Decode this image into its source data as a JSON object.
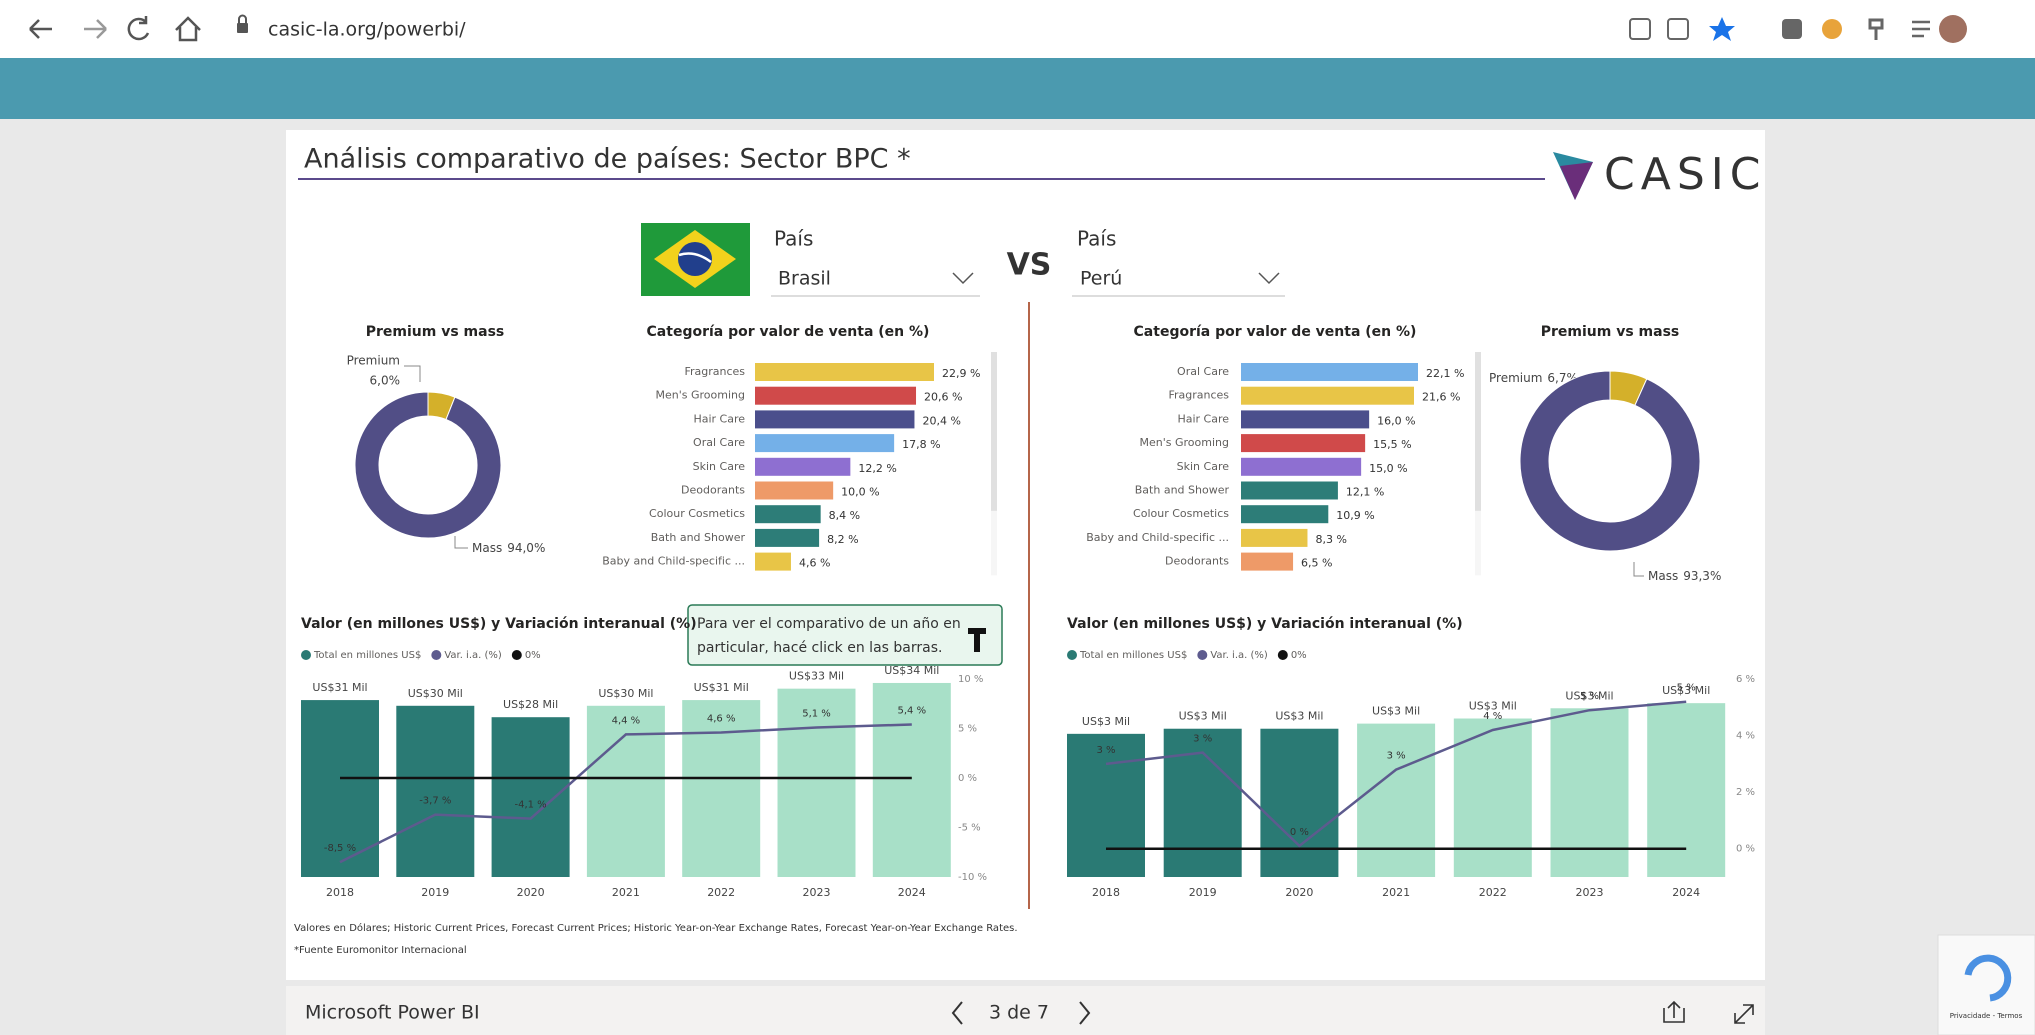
{
  "browser": {
    "url": "casic-la.org/powerbi/"
  },
  "report": {
    "title": "Análisis comparativo de países: Sector BPC *",
    "logo": "CASIC",
    "vs": "VS",
    "left_filter": {
      "label": "País",
      "value": "Brasil"
    },
    "right_filter": {
      "label": "País",
      "value": "Perú"
    },
    "tooltip": [
      "Para ver el comparativo de un año en",
      "particular, hacé click en las barras."
    ],
    "footnotes": [
      "Valores en Dólares; Historic Current Prices, Forecast Current Prices; Historic Year-on-Year Exchange Rates, Forecast Year-on-Year Exchange Rates.",
      "*Fuente Euromonitor Internacional"
    ]
  },
  "viewer": {
    "app": "Microsoft Power BI",
    "page": "3 de 7"
  },
  "recaptcha": {
    "links": "Privacidade - Termos"
  },
  "chart_data": [
    {
      "type": "pie",
      "title": "Premium vs mass",
      "categories": [
        "Premium",
        "Mass"
      ],
      "values": [
        6.0,
        94.0
      ],
      "value_labels": [
        "6,0%",
        "94,0%"
      ],
      "colors": [
        "#d4b02a",
        "#514e86"
      ]
    },
    {
      "type": "bar",
      "orientation": "horizontal",
      "title": "Categoría por valor de venta (en %)",
      "categories": [
        "Fragrances",
        "Men's Grooming",
        "Hair Care",
        "Oral Care",
        "Skin Care",
        "Deodorants",
        "Colour Cosmetics",
        "Bath and Shower",
        "Baby and Child-specific ..."
      ],
      "values": [
        22.9,
        20.6,
        20.4,
        17.8,
        12.2,
        10.0,
        8.4,
        8.2,
        4.6
      ],
      "value_labels": [
        "22,9 %",
        "20,6 %",
        "20,4 %",
        "17,8 %",
        "12,2 %",
        "10,0 %",
        "8,4 %",
        "8,2 %",
        "4,6 %"
      ],
      "colors": [
        "#e8c547",
        "#d04a4a",
        "#4b4f8c",
        "#74b0e8",
        "#8e6fd1",
        "#ee9a68",
        "#2d7d78",
        "#2d7d78",
        "#e8c547"
      ]
    },
    {
      "type": "combo",
      "title": "Valor (en millones US$) y Variación interanual (%)",
      "categories": [
        "2018",
        "2019",
        "2020",
        "2021",
        "2022",
        "2023",
        "2024"
      ],
      "series": [
        {
          "name": "Total en millones US$",
          "color": "#2a7a74",
          "colors": [
            "#2a7a74",
            "#2a7a74",
            "#2a7a74",
            "#a8e0c8",
            "#a8e0c8",
            "#a8e0c8",
            "#a8e0c8"
          ],
          "values": [
            31,
            30,
            28,
            30,
            31,
            33,
            34
          ],
          "value_labels": [
            "US$31 Mil",
            "US$30 Mil",
            "US$28 Mil",
            "US$30 Mil",
            "US$31 Mil",
            "US$33 Mil",
            "US$34 Mil"
          ]
        },
        {
          "name": "Var. i.a. (%)",
          "color": "#5d5b8e",
          "axis": "y2",
          "values": [
            -8.5,
            -3.7,
            -4.1,
            4.4,
            4.6,
            5.1,
            5.4
          ],
          "value_labels": [
            "-8,5 %",
            "-3,7 %",
            "-4,1 %",
            "4,4 %",
            "4,6 %",
            "5,1 %",
            "5,4 %"
          ]
        },
        {
          "name": "0%",
          "color": "#111111",
          "axis": "y2",
          "values": [
            0,
            0,
            0,
            0,
            0,
            0,
            0
          ]
        }
      ],
      "y2lim": [
        -10,
        10
      ],
      "y2ticks": [
        {
          "value": 10,
          "label": "10 %"
        },
        {
          "value": 5,
          "label": "5 %"
        },
        {
          "value": 0,
          "label": "0 %"
        },
        {
          "value": -5,
          "label": "-5 %"
        },
        {
          "value": -10,
          "label": "-10 %"
        }
      ]
    },
    {
      "type": "bar",
      "orientation": "horizontal",
      "title": "Categoría por valor de venta (en %)",
      "categories": [
        "Oral Care",
        "Fragrances",
        "Hair Care",
        "Men's Grooming",
        "Skin Care",
        "Bath and Shower",
        "Colour Cosmetics",
        "Baby and Child-specific ...",
        "Deodorants"
      ],
      "values": [
        22.1,
        21.6,
        16.0,
        15.5,
        15.0,
        12.1,
        10.9,
        8.3,
        6.5
      ],
      "value_labels": [
        "22,1 %",
        "21,6 %",
        "16,0 %",
        "15,5 %",
        "15,0 %",
        "12,1 %",
        "10,9 %",
        "8,3 %",
        "6,5 %"
      ],
      "colors": [
        "#74b0e8",
        "#e8c547",
        "#4b4f8c",
        "#d04a4a",
        "#8e6fd1",
        "#2d7d78",
        "#2d7d78",
        "#e8c547",
        "#ee9a68"
      ]
    },
    {
      "type": "pie",
      "title": "Premium vs mass",
      "categories": [
        "Premium",
        "Mass"
      ],
      "values": [
        6.7,
        93.3
      ],
      "value_labels": [
        "6,7%",
        "93,3%"
      ],
      "colors": [
        "#d4b02a",
        "#514e86"
      ]
    },
    {
      "type": "combo",
      "title": "Valor (en millones US$) y Variación interanual (%)",
      "categories": [
        "2018",
        "2019",
        "2020",
        "2021",
        "2022",
        "2023",
        "2024"
      ],
      "series": [
        {
          "name": "Total en millones US$",
          "color": "#2a7a74",
          "colors": [
            "#2a7a74",
            "#2a7a74",
            "#2a7a74",
            "#a8e0c8",
            "#a8e0c8",
            "#a8e0c8",
            "#a8e0c8"
          ],
          "values": [
            2.8,
            2.9,
            2.9,
            3.0,
            3.1,
            3.3,
            3.4
          ],
          "value_labels": [
            "US$3 Mil",
            "US$3 Mil",
            "US$3 Mil",
            "US$3 Mil",
            "US$3 Mil",
            "US$3 Mil",
            "US$3 Mil"
          ]
        },
        {
          "name": "Var. i.a. (%)",
          "color": "#5d5b8e",
          "axis": "y2",
          "values": [
            3.0,
            3.4,
            0.1,
            2.8,
            4.2,
            4.9,
            5.2
          ],
          "value_labels": [
            "3 %",
            "3 %",
            "0 %",
            "3 %",
            "4 %",
            "5 %",
            "5 %"
          ]
        },
        {
          "name": "0%",
          "color": "#111111",
          "axis": "y2",
          "values": [
            0,
            0,
            0,
            0,
            0,
            0,
            0
          ]
        }
      ],
      "y2lim": [
        -1,
        6.5
      ],
      "y2ticks": [
        {
          "value": 6,
          "label": "6 %"
        },
        {
          "value": 4,
          "label": "4 %"
        },
        {
          "value": 2,
          "label": "2 %"
        },
        {
          "value": 0,
          "label": "0 %"
        }
      ]
    }
  ]
}
